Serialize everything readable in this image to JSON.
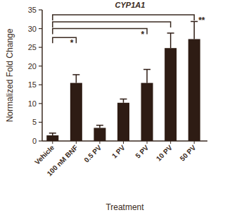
{
  "chart_data": {
    "type": "bar",
    "title": "CYP1A1",
    "x_label": "Treatment",
    "y_label": "Normalized Fold Change",
    "categories": [
      "Vehicle",
      "100 nM BNF",
      "0.5 PV",
      "1 PV",
      "5 PV",
      "10 PV",
      "50 PV"
    ],
    "values": [
      1.5,
      15.5,
      3.5,
      10.2,
      15.5,
      24.8,
      27.2
    ],
    "errors": [
      0.6,
      2.2,
      0.7,
      1.0,
      3.6,
      4.0,
      4.7
    ],
    "color": "#2e1c14",
    "ylim": [
      0,
      35
    ],
    "yticks": [
      0,
      5,
      10,
      15,
      20,
      25,
      30,
      35
    ],
    "grid": false,
    "annotations": [
      {
        "from": 0,
        "to": 6,
        "y": 33.7,
        "label": "**"
      },
      {
        "from": 0,
        "to": 5,
        "y": 31.8
      },
      {
        "from": 0,
        "to": 4,
        "y": 30.0,
        "label": "*"
      },
      {
        "from": 0,
        "to": 1,
        "y": 27.6,
        "label": "*"
      }
    ]
  }
}
